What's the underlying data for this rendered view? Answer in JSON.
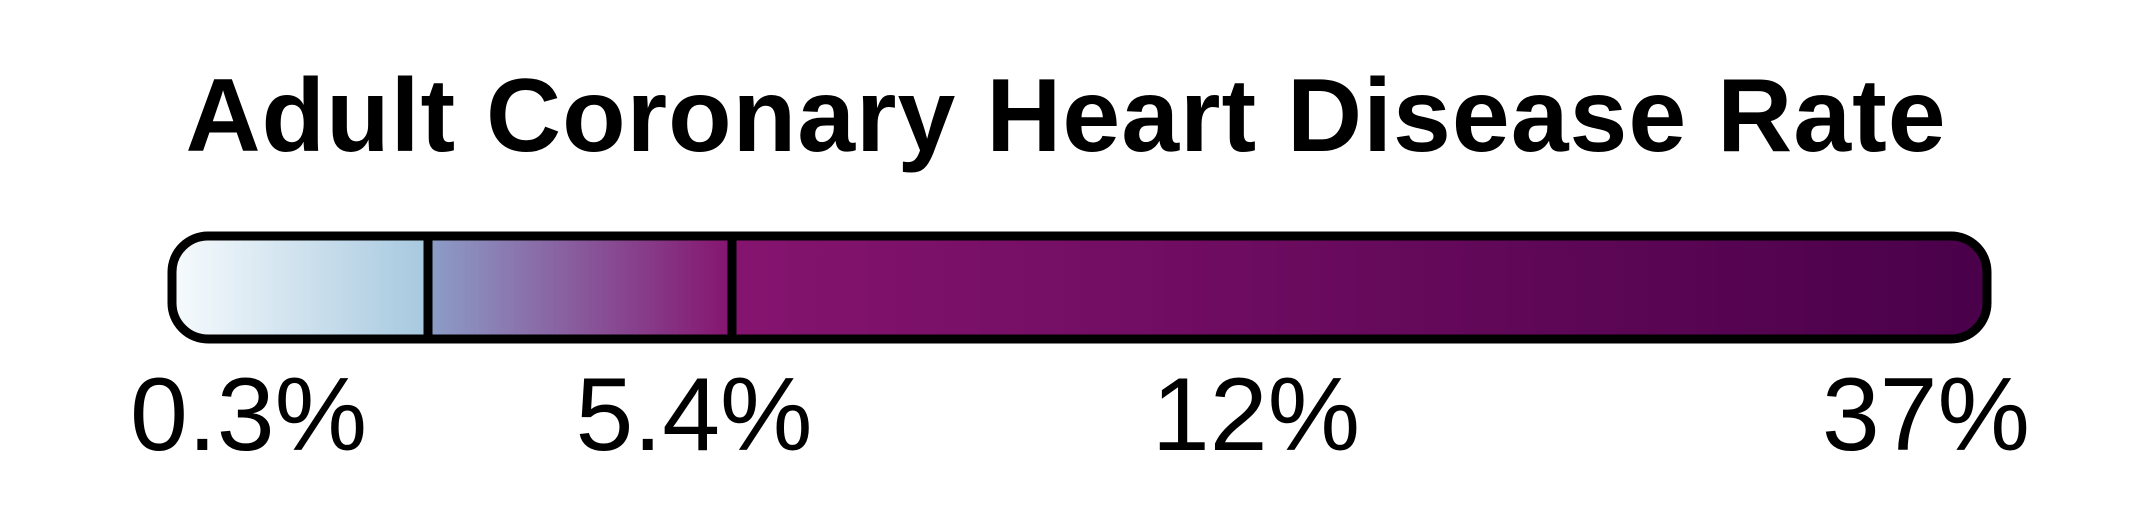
{
  "title": "Adult Coronary Heart Disease Rate",
  "chart_data": {
    "type": "legend-colorbar",
    "title": "Adult Coronary Heart Disease Rate",
    "breaks": [
      0.3,
      5.4,
      12,
      37
    ],
    "tick_labels": [
      "0.3%",
      "5.4%",
      "12%",
      "37%"
    ],
    "unit": "%",
    "colors": {
      "start": "#f7fbfd",
      "mid_low": "#a6c8df",
      "mid_blue": "#8c9ec8",
      "mid": "#85146f",
      "end": "#4a004a",
      "outline": "#000000"
    }
  }
}
